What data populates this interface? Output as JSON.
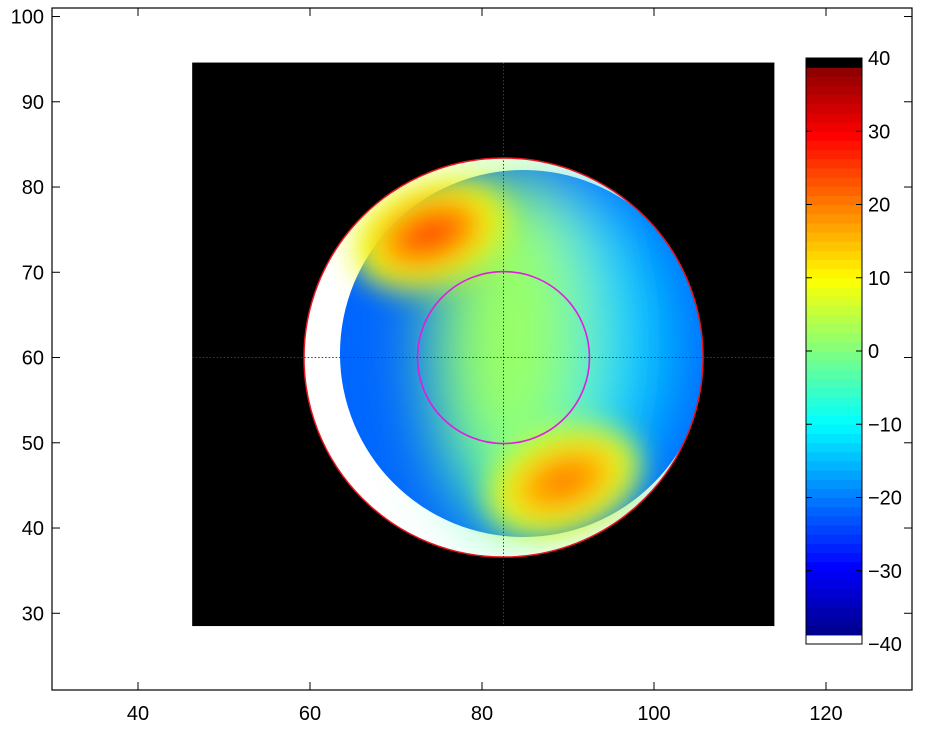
{
  "chart_data": {
    "type": "heatmap",
    "title": "",
    "xlabel": "",
    "ylabel": "",
    "xlim": [
      30,
      130
    ],
    "ylim": [
      21,
      101
    ],
    "x_ticks": [
      "40",
      "60",
      "80",
      "100",
      "120"
    ],
    "y_ticks": [
      "30",
      "40",
      "50",
      "60",
      "70",
      "80",
      "90",
      "100"
    ],
    "image_extent": {
      "x": [
        46.3,
        114.0
      ],
      "y": [
        28.5,
        94.6
      ]
    },
    "background_color": "#000000",
    "colormap": "jet",
    "clim": [
      -40,
      40
    ],
    "colorbar_ticks": [
      "40",
      "30",
      "20",
      "10",
      "0",
      "−10",
      "−20",
      "−30",
      "−40"
    ],
    "outer_circle": {
      "center": [
        82.5,
        60
      ],
      "radius": 23.2,
      "color": "#e8141e"
    },
    "inner_circle": {
      "center": [
        82.5,
        60
      ],
      "radius": 10,
      "color": "#e11be1"
    },
    "crosshair": {
      "x": 82.5,
      "y": 60,
      "color": "#cc0000"
    },
    "hot_spots": [
      {
        "center": [
          74,
          74.5
        ],
        "peak_value": 24
      },
      {
        "center": [
          89.5,
          45.5
        ],
        "peak_value": 20
      }
    ]
  }
}
